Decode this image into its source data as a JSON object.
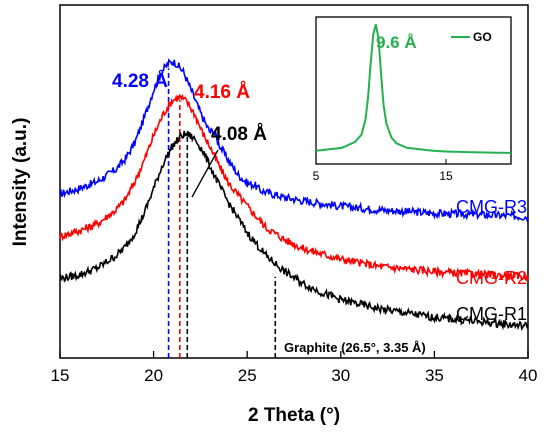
{
  "chart_data": [
    {
      "type": "line",
      "xlabel": "2 Theta (°)",
      "ylabel": "Intensity (a.u.)",
      "xlim": [
        15,
        40
      ],
      "xticks": [
        "15",
        "20",
        "25",
        "30",
        "35",
        "40"
      ],
      "y_ticks_shown": false,
      "series": [
        {
          "name": "CMG-R3",
          "color": "#0000ff",
          "x": [
            15,
            16,
            17,
            18,
            18.5,
            19,
            19.5,
            20,
            20.4,
            20.8,
            21.0,
            21.2,
            21.6,
            22.0,
            22.5,
            23.0,
            23.2,
            23.5,
            24,
            24.5,
            25,
            25.4,
            25.7,
            26,
            27,
            28,
            30,
            32,
            35,
            38,
            40
          ],
          "y": [
            0.465,
            0.48,
            0.5,
            0.535,
            0.565,
            0.61,
            0.68,
            0.76,
            0.81,
            0.835,
            0.84,
            0.835,
            0.81,
            0.76,
            0.695,
            0.64,
            0.645,
            0.605,
            0.56,
            0.52,
            0.495,
            0.49,
            0.475,
            0.47,
            0.455,
            0.445,
            0.43,
            0.42,
            0.41,
            0.405,
            0.4
          ]
        },
        {
          "name": "CMG-R2",
          "color": "#ff0000",
          "x": [
            15,
            16,
            17,
            18,
            18.5,
            19,
            19.5,
            20,
            20.5,
            21.0,
            21.4,
            21.8,
            22.2,
            22.6,
            23,
            23.5,
            24,
            25,
            26,
            27,
            28,
            30,
            32,
            35,
            38,
            40
          ],
          "y": [
            0.345,
            0.36,
            0.38,
            0.42,
            0.45,
            0.5,
            0.56,
            0.63,
            0.69,
            0.73,
            0.74,
            0.725,
            0.69,
            0.64,
            0.6,
            0.545,
            0.495,
            0.43,
            0.37,
            0.335,
            0.31,
            0.28,
            0.26,
            0.245,
            0.235,
            0.23
          ]
        },
        {
          "name": "CMG-R1",
          "color": "#000000",
          "x": [
            15,
            16,
            17,
            18,
            18.5,
            19,
            19.5,
            20,
            20.5,
            21.0,
            21.5,
            21.8,
            22.2,
            22.6,
            23,
            23.5,
            24,
            25,
            26,
            27,
            28,
            29,
            30,
            32,
            35,
            38,
            40
          ],
          "y": [
            0.225,
            0.235,
            0.255,
            0.29,
            0.315,
            0.355,
            0.41,
            0.48,
            0.55,
            0.6,
            0.63,
            0.635,
            0.62,
            0.59,
            0.545,
            0.49,
            0.44,
            0.355,
            0.29,
            0.245,
            0.21,
            0.185,
            0.165,
            0.14,
            0.115,
            0.1,
            0.09
          ]
        }
      ],
      "annotations": {
        "r3_spacing": "4.28 Å",
        "r2_spacing": "4.16 Å",
        "r1_spacing": "4.08 Å",
        "graphite": "Graphite (26.5°, 3.35 Å)"
      },
      "reference_lines": [
        {
          "x": 20.8,
          "color": "#0000ff",
          "y_top": 0.82
        },
        {
          "x": 21.4,
          "color": "#ff0000",
          "y_top": 0.73
        },
        {
          "x": 21.8,
          "color": "#000000",
          "y_top": 0.63
        },
        {
          "x": 26.5,
          "color": "#000000",
          "y_top": 0.23
        }
      ],
      "inset": {
        "type": "line",
        "xlim": [
          5,
          20
        ],
        "xticks": [
          "5",
          "15"
        ],
        "series": [
          {
            "name": "GO",
            "color": "#22b14c",
            "x": [
              5,
              6,
              7,
              7.5,
              8,
              8.5,
              8.8,
              9.0,
              9.2,
              9.4,
              9.6,
              9.8,
              10.0,
              10.2,
              10.4,
              10.8,
              11.2,
              12,
              13,
              14,
              15,
              17,
              20
            ],
            "y": [
              0.09,
              0.1,
              0.11,
              0.13,
              0.15,
              0.2,
              0.3,
              0.45,
              0.68,
              0.88,
              0.95,
              0.86,
              0.62,
              0.4,
              0.28,
              0.18,
              0.14,
              0.11,
              0.1,
              0.09,
              0.085,
              0.08,
              0.075
            ]
          }
        ],
        "annotation": "9.6 Å"
      }
    }
  ]
}
